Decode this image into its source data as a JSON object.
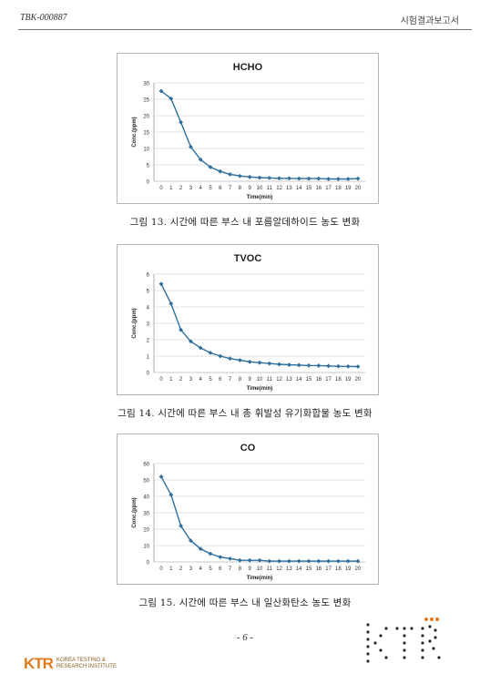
{
  "header": {
    "doc_id": "TBK-000887",
    "doc_type": "시험결과보고서"
  },
  "captions": [
    "그림 13. 시간에 따른 부스 내 포름알데하이드 농도 변화",
    "그림 14. 시간에 따른 부스 내 총 휘발성 유기화합물 농도 변화",
    "그림 15. 시간에 따른 부스 내 일산화탄소 농도 변화"
  ],
  "page_number": "- 6 -",
  "footer": {
    "logo_mark": "KTR",
    "logo_line1": "KOREA TESTING &",
    "logo_line2": "RESEARCH INSTITUTE"
  },
  "colors": {
    "series": "#2e6f9e",
    "grid": "#c8c8c8",
    "axis_text": "#333333"
  },
  "chart_data": [
    {
      "type": "line",
      "title": "HCHO",
      "xlabel": "Time(min)",
      "ylabel": "Conc.(ppm)",
      "x": [
        0,
        1,
        2,
        3,
        4,
        5,
        6,
        7,
        8,
        9,
        10,
        11,
        12,
        13,
        14,
        15,
        16,
        17,
        18,
        19,
        20
      ],
      "values": [
        27.5,
        25.2,
        18.0,
        10.5,
        6.6,
        4.3,
        3.0,
        2.1,
        1.6,
        1.3,
        1.1,
        1.0,
        0.9,
        0.9,
        0.8,
        0.8,
        0.8,
        0.7,
        0.7,
        0.7,
        0.8
      ],
      "ylim": [
        0,
        30
      ],
      "yticks": [
        0,
        5,
        10,
        15,
        20,
        25,
        30
      ],
      "grid": true,
      "legend": "none"
    },
    {
      "type": "line",
      "title": "TVOC",
      "xlabel": "Time(min)",
      "ylabel": "Conc.(ppm)",
      "x": [
        0,
        1,
        2,
        3,
        4,
        5,
        6,
        7,
        8,
        9,
        10,
        11,
        12,
        13,
        14,
        15,
        16,
        17,
        18,
        19,
        20
      ],
      "values": [
        5.4,
        4.2,
        2.6,
        1.9,
        1.5,
        1.2,
        1.0,
        0.85,
        0.75,
        0.65,
        0.6,
        0.55,
        0.5,
        0.47,
        0.45,
        0.43,
        0.42,
        0.4,
        0.38,
        0.37,
        0.36
      ],
      "ylim": [
        0,
        6
      ],
      "yticks": [
        0,
        1,
        2,
        3,
        4,
        5,
        6
      ],
      "grid": true,
      "legend": "none"
    },
    {
      "type": "line",
      "title": "CO",
      "xlabel": "Time(min)",
      "ylabel": "Conc.(ppm)",
      "x": [
        0,
        1,
        2,
        3,
        4,
        5,
        6,
        7,
        8,
        9,
        10,
        11,
        12,
        13,
        14,
        15,
        16,
        17,
        18,
        19,
        20
      ],
      "values": [
        52,
        41,
        22,
        13,
        8,
        5,
        3,
        2,
        1,
        1,
        1,
        0.5,
        0.5,
        0.5,
        0.5,
        0.5,
        0.5,
        0.5,
        0.5,
        0.5,
        0.5
      ],
      "ylim": [
        0,
        60
      ],
      "yticks": [
        0,
        10,
        20,
        30,
        40,
        50,
        60
      ],
      "grid": true,
      "legend": "none"
    }
  ]
}
